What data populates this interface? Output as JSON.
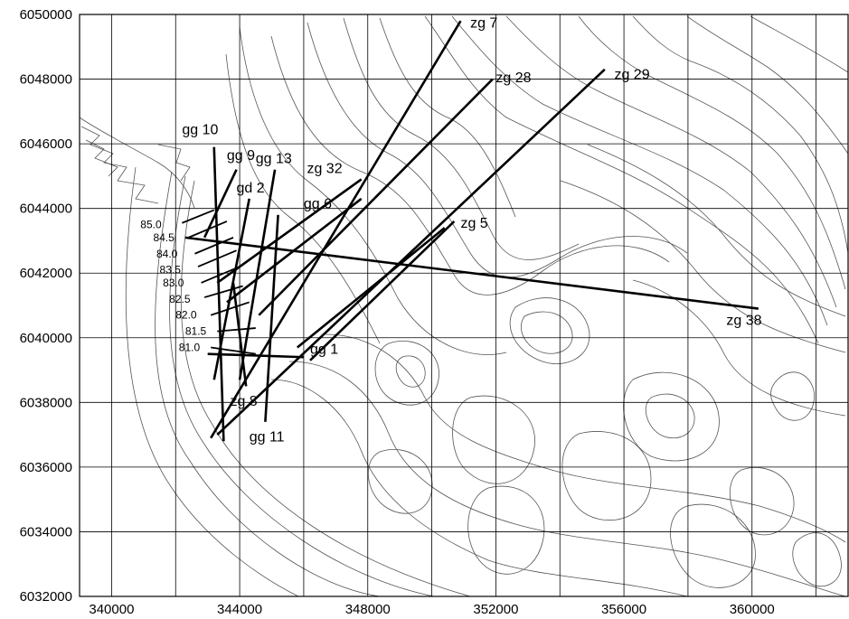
{
  "axes": {
    "x_ticks": [
      "340000",
      "344000",
      "348000",
      "352000",
      "356000",
      "360000"
    ],
    "y_ticks": [
      "6050000",
      "6048000",
      "6046000",
      "6044000",
      "6042000",
      "6040000",
      "6038000",
      "6036000",
      "6034000",
      "6032000"
    ],
    "xlim": [
      339000,
      363000
    ],
    "ylim": [
      6032000,
      6050000
    ]
  },
  "profiles": [
    {
      "id": "zg7",
      "label": "zg 7",
      "from": [
        343100,
        6036900
      ],
      "to": [
        350900,
        6049800
      ],
      "label_at": [
        351200,
        6049600
      ]
    },
    {
      "id": "zg28",
      "label": "zg 28",
      "from": [
        344600,
        6040700
      ],
      "to": [
        351900,
        6048000
      ],
      "label_at": [
        352000,
        6047900
      ]
    },
    {
      "id": "zg29",
      "label": "zg 29",
      "from": [
        343300,
        6037000
      ],
      "to": [
        355400,
        6048300
      ],
      "label_at": [
        355700,
        6048000
      ]
    },
    {
      "id": "zg32",
      "label": "zg 32",
      "from": [
        343300,
        6041700
      ],
      "to": [
        347800,
        6044900
      ],
      "label_at": [
        346100,
        6045100
      ]
    },
    {
      "id": "gg6",
      "label": "gg 6",
      "from": [
        343600,
        6041100
      ],
      "to": [
        347800,
        6044300
      ],
      "label_at": [
        346000,
        6044000
      ]
    },
    {
      "id": "zg5",
      "label": "zg 5",
      "from": [
        346200,
        6039300
      ],
      "to": [
        350700,
        6043600
      ],
      "label_at": [
        350900,
        6043400
      ]
    },
    {
      "id": "zg5b",
      "label": "",
      "from": [
        345800,
        6039700
      ],
      "to": [
        350400,
        6043400
      ],
      "label_at": null
    },
    {
      "id": "zg38",
      "label": "zg 38",
      "from": [
        342300,
        6043100
      ],
      "to": [
        360200,
        6040900
      ],
      "label_at": [
        359200,
        6040400
      ]
    },
    {
      "id": "gg10",
      "label": "gg 10",
      "from": [
        343200,
        6045900
      ],
      "to": [
        343500,
        6036800
      ],
      "label_at": [
        342200,
        6046300
      ]
    },
    {
      "id": "gg9",
      "label": "gg 9",
      "from": [
        343900,
        6045200
      ],
      "to": [
        342900,
        6043100
      ],
      "label_at": [
        343600,
        6045500
      ]
    },
    {
      "id": "gg13",
      "label": "gg 13",
      "from": [
        345100,
        6045200
      ],
      "to": [
        344000,
        6038700
      ],
      "label_at": [
        344500,
        6045400
      ]
    },
    {
      "id": "gd2",
      "label": "gd 2",
      "from": [
        344300,
        6044300
      ],
      "to": [
        343200,
        6038700
      ],
      "label_at": [
        343900,
        6044500
      ]
    },
    {
      "id": "gg11",
      "label": "gg 11",
      "from": [
        345200,
        6043800
      ],
      "to": [
        344800,
        6037400
      ],
      "label_at": [
        344300,
        6036800
      ]
    },
    {
      "id": "gg1",
      "label": "gg 1",
      "from": [
        343000,
        6039500
      ],
      "to": [
        346000,
        6039400
      ],
      "label_at": [
        346200,
        6039500
      ]
    },
    {
      "id": "zg8",
      "label": "zg 8",
      "from": [
        343800,
        6041700
      ],
      "to": [
        344200,
        6038500
      ],
      "label_at": [
        343700,
        6037900
      ]
    }
  ],
  "kilometre_marks": [
    {
      "label": "85.0",
      "from": [
        342200,
        6043550
      ],
      "to": [
        343200,
        6043950
      ],
      "label_at": [
        340900,
        6043500
      ]
    },
    {
      "label": "84.5",
      "from": [
        342400,
        6043100
      ],
      "to": [
        343600,
        6043600
      ],
      "label_at": [
        341300,
        6043100
      ]
    },
    {
      "label": "84.0",
      "from": [
        342600,
        6042600
      ],
      "to": [
        343800,
        6043100
      ],
      "label_at": [
        341400,
        6042600
      ]
    },
    {
      "label": "83.5",
      "from": [
        342700,
        6042200
      ],
      "to": [
        343900,
        6042700
      ],
      "label_at": [
        341500,
        6042100
      ]
    },
    {
      "label": "83.0",
      "from": [
        342800,
        6041700
      ],
      "to": [
        344000,
        6042200
      ],
      "label_at": [
        341600,
        6041700
      ]
    },
    {
      "label": "82.5",
      "from": [
        342900,
        6041250
      ],
      "to": [
        344100,
        6041600
      ],
      "label_at": [
        341800,
        6041200
      ]
    },
    {
      "label": "82.0",
      "from": [
        343100,
        6040700
      ],
      "to": [
        344300,
        6041100
      ],
      "label_at": [
        342000,
        6040700
      ]
    },
    {
      "label": "81.5",
      "from": [
        343300,
        6040200
      ],
      "to": [
        344500,
        6040300
      ],
      "label_at": [
        342300,
        6040200
      ]
    },
    {
      "label": "81.0",
      "from": [
        343100,
        6039700
      ],
      "to": [
        344500,
        6039500
      ],
      "label_at": [
        342100,
        6039700
      ]
    }
  ]
}
